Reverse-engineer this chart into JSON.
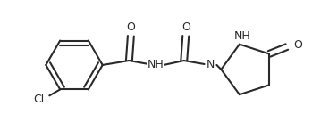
{
  "background_color": "#ffffff",
  "line_color": "#2a2a2a",
  "line_width": 1.5,
  "figsize": [
    3.68,
    1.38
  ],
  "dpi": 100,
  "xlim": [
    0,
    368
  ],
  "ylim": [
    0,
    138
  ]
}
